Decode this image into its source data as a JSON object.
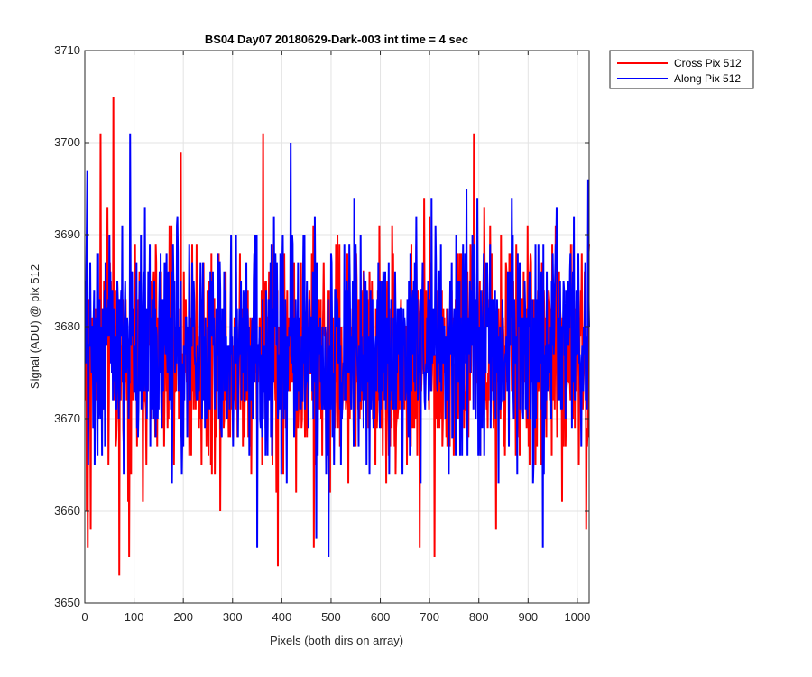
{
  "chart_data": {
    "type": "line",
    "title": "BS04 Day07 20180629-Dark-003 int time = 4 sec",
    "xlabel": "Pixels (both dirs on array)",
    "ylabel": "Signal (ADU) @ pix 512",
    "xlim": [
      0,
      1024
    ],
    "ylim": [
      3650,
      3710
    ],
    "xticks": [
      0,
      100,
      200,
      300,
      400,
      500,
      600,
      700,
      800,
      900,
      1000
    ],
    "yticks": [
      3650,
      3660,
      3670,
      3680,
      3690,
      3700,
      3710
    ],
    "grid": true,
    "legend_position": "outside-top-right",
    "series": [
      {
        "name": "Cross Pix 512",
        "color": "#ff0000",
        "n_points": 1024,
        "summary": {
          "approx_mean": 3677,
          "approx_min": 3653,
          "approx_max": 3705
        },
        "notable_points": [
          {
            "x": 4,
            "y": 3660
          },
          {
            "x": 6,
            "y": 3656
          },
          {
            "x": 12,
            "y": 3658
          },
          {
            "x": 32,
            "y": 3701
          },
          {
            "x": 58,
            "y": 3705
          },
          {
            "x": 70,
            "y": 3653
          },
          {
            "x": 90,
            "y": 3655
          },
          {
            "x": 195,
            "y": 3699
          },
          {
            "x": 362,
            "y": 3701
          },
          {
            "x": 392,
            "y": 3654
          },
          {
            "x": 465,
            "y": 3656
          },
          {
            "x": 680,
            "y": 3656
          },
          {
            "x": 710,
            "y": 3655
          },
          {
            "x": 790,
            "y": 3701
          },
          {
            "x": 835,
            "y": 3658
          },
          {
            "x": 1018,
            "y": 3658
          }
        ]
      },
      {
        "name": "Along Pix 512",
        "color": "#0000ff",
        "n_points": 1024,
        "summary": {
          "approx_mean": 3678,
          "approx_min": 3655,
          "approx_max": 3701
        },
        "notable_points": [
          {
            "x": 5,
            "y": 3697
          },
          {
            "x": 92,
            "y": 3701
          },
          {
            "x": 350,
            "y": 3656
          },
          {
            "x": 418,
            "y": 3700
          },
          {
            "x": 470,
            "y": 3657
          },
          {
            "x": 495,
            "y": 3655
          },
          {
            "x": 930,
            "y": 3656
          },
          {
            "x": 1022,
            "y": 3696
          }
        ]
      }
    ]
  },
  "colors": {
    "grid": "#e3e3e3",
    "axis": "#262626",
    "text": "#262626"
  }
}
